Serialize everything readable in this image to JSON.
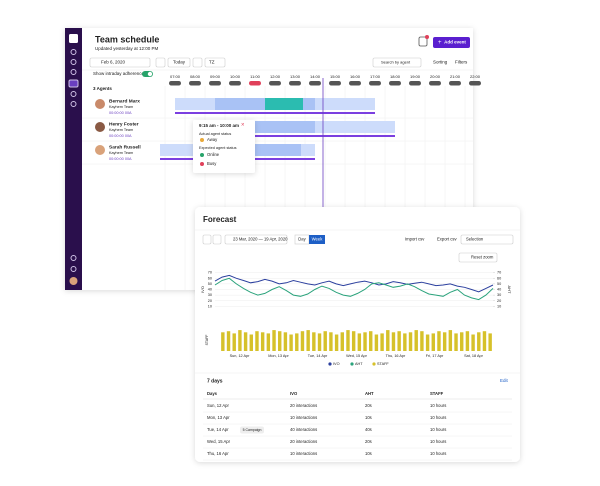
{
  "schedule": {
    "title": "Team schedule",
    "updated": "Updated yesterday at 12:00 PM",
    "add_event": "Add event",
    "date": "Feb 6, 2020",
    "today": "Today",
    "timezone": "TZ",
    "search": "Search by agent",
    "sorting": "Sorting",
    "filters": "Filters",
    "adherence": "Show intraday adherence",
    "agent_count": "3 Agents",
    "hours": [
      "07:00",
      "08:00",
      "09:00",
      "10:00",
      "11:00",
      "12:00",
      "13:00",
      "14:00",
      "15:00",
      "16:00",
      "17:00",
      "18:00",
      "19:00",
      "20:00",
      "21:00",
      "22:00"
    ],
    "agents": [
      {
        "name": "Bernard Marx",
        "team": "Kayhem Team",
        "id": "00:00:00 00A",
        "color": "#c98a6a"
      },
      {
        "name": "Henry Foster",
        "team": "Kayhem Team",
        "id": "00:00:00 00A",
        "color": "#8a5a44"
      },
      {
        "name": "Sarah Russell",
        "team": "Kayhem Team",
        "id": "00:00:00 00A",
        "color": "#d9a27a"
      }
    ],
    "popup": {
      "time": "9:15 am - 10:00 am",
      "actual": "Actual agent status",
      "away": "Away",
      "expected": "Expected agent status",
      "online": "Online",
      "busy": "Busy"
    }
  },
  "forecast": {
    "title": "Forecast",
    "date_range": "23 Mar, 2020 — 19 Apr, 2020",
    "day": "Day",
    "week": "Week",
    "import": "Import csv",
    "export": "Export csv",
    "selection": "Selection",
    "reset_zoom": "Reset zoom",
    "chart": {
      "type": "line",
      "y_label": "IVO",
      "y2_label": "AHT",
      "x_labels": [
        "Sun, 12 Apr",
        "Mon, 13 Apr",
        "Tue, 14 Apr",
        "Wed, 15 Apr",
        "Thu, 16 Apr",
        "Fri, 17 Apr",
        "Sat, 18 Apr"
      ],
      "ylim": [
        0,
        80
      ],
      "yticks": [
        10,
        20,
        30,
        40,
        50,
        60,
        70
      ],
      "y2lim": [
        0,
        80
      ],
      "y2ticks": [
        10,
        20,
        30,
        40,
        50,
        60,
        70
      ],
      "grid": true,
      "series": [
        {
          "name": "IVO",
          "color": "#2b3f9e",
          "values": [
            55,
            62,
            65,
            60,
            56,
            52,
            54,
            58,
            55,
            50,
            52,
            56,
            53,
            50,
            48,
            52,
            55,
            50,
            47,
            50,
            53,
            55,
            52,
            48,
            50,
            54,
            52,
            49,
            51,
            53,
            50,
            47,
            48,
            50,
            46,
            44,
            40,
            36,
            42,
            48
          ]
        },
        {
          "name": "AHT",
          "color": "#2ba37c",
          "axis": "y2",
          "values": [
            48,
            56,
            60,
            50,
            42,
            35,
            30,
            33,
            40,
            45,
            38,
            30,
            28,
            32,
            40,
            46,
            42,
            35,
            30,
            28,
            33,
            40,
            50,
            52,
            48,
            44,
            46,
            50,
            45,
            38,
            32,
            30,
            28,
            35,
            40,
            30,
            25,
            22,
            30,
            42
          ]
        }
      ]
    },
    "staff": {
      "type": "bar",
      "name": "STAFF",
      "y_label": "STAFF",
      "color": "#d6c12a",
      "ylim": [
        0,
        20
      ],
      "values": [
        17,
        18,
        16,
        19,
        17,
        15,
        18,
        17,
        16,
        19,
        18,
        17,
        15,
        16,
        18,
        19,
        17,
        16,
        18,
        17,
        15,
        17,
        19,
        18,
        16,
        17,
        18,
        15,
        16,
        19,
        17,
        18,
        16,
        17,
        19,
        18,
        15,
        16,
        18,
        17,
        19,
        16,
        17,
        18,
        15,
        17,
        18,
        16
      ]
    },
    "table": {
      "heading": "7 days",
      "edit": "Edit",
      "columns": [
        "Days",
        "IVO",
        "AHT",
        "STAFF"
      ],
      "rows": [
        {
          "day": "Sun, 12 Apr",
          "ivo": "20 interactions",
          "aht": "20s",
          "staff": "10 hours"
        },
        {
          "day": "Mon, 13 Apr",
          "ivo": "10 interactions",
          "aht": "10s",
          "staff": "10 hours"
        },
        {
          "day": "Tue, 14 Apr",
          "tag": "5 Campaign",
          "ivo": "40 interactions",
          "aht": "40s",
          "staff": "10 hours"
        },
        {
          "day": "Wed, 15 Apr",
          "ivo": "20 interactions",
          "aht": "20s",
          "staff": "10 hours"
        },
        {
          "day": "Thu, 16 Apr",
          "ivo": "10 interactions",
          "aht": "10s",
          "staff": "10 hours"
        }
      ]
    }
  }
}
